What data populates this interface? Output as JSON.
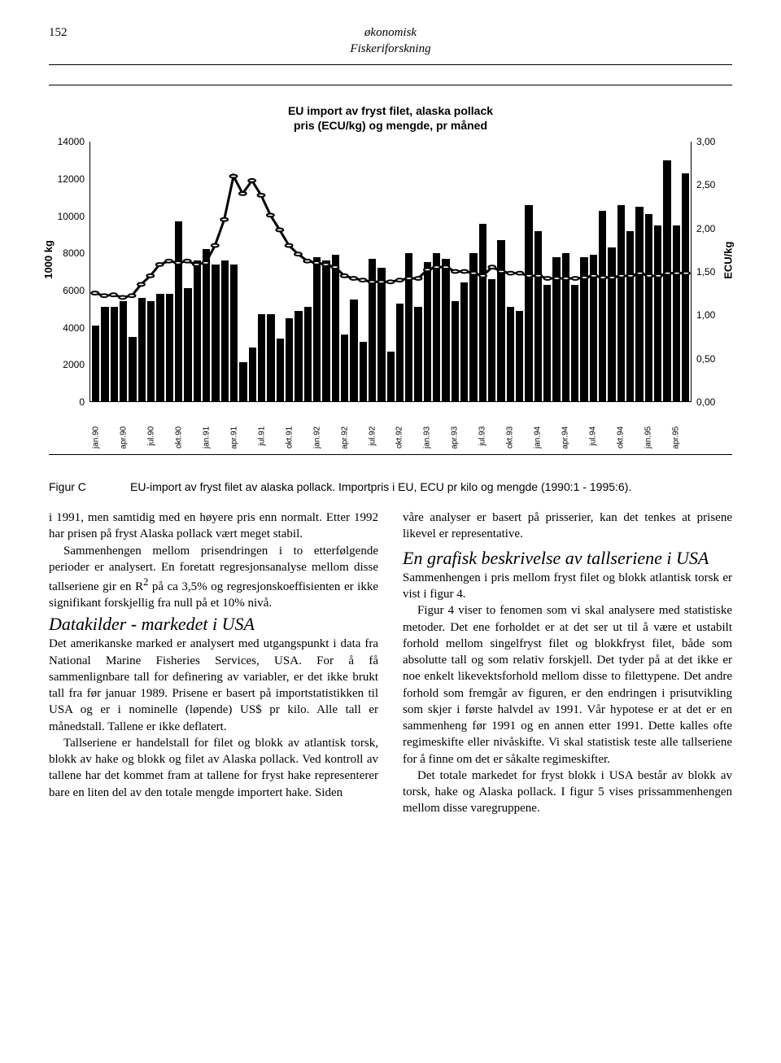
{
  "header": {
    "page_number": "152",
    "journal_line1": "økonomisk",
    "journal_line2": "Fiskeriforskning"
  },
  "chart": {
    "type": "bar+line",
    "title_line1": "EU import av fryst filet, alaska pollack",
    "title_line2": "pris (ECU/kg) og mengde, pr måned",
    "left_axis": {
      "label": "1000 kg",
      "min": 0,
      "max": 14000,
      "step": 2000,
      "ticks": [
        "0",
        "2000",
        "4000",
        "6000",
        "8000",
        "10000",
        "12000",
        "14000"
      ]
    },
    "right_axis": {
      "label": "ECU/kg",
      "min": 0,
      "max": 3.0,
      "step": 0.5,
      "ticks": [
        "0,00",
        "0,50",
        "1,00",
        "1,50",
        "2,00",
        "2,50",
        "3,00"
      ]
    },
    "x_labels": [
      "jan.90",
      "apr.90",
      "jul.90",
      "okt.90",
      "jan.91",
      "apr.91",
      "jul.91",
      "okt.91",
      "jan.92",
      "apr.92",
      "jul.92",
      "okt.92",
      "jan.93",
      "apr.93",
      "jul.93",
      "okt.93",
      "jan.94",
      "apr.94",
      "jul.94",
      "okt.94",
      "jan.95",
      "apr.95"
    ],
    "bar_values": [
      4100,
      5100,
      5100,
      5400,
      3500,
      5600,
      5400,
      5800,
      5800,
      9700,
      6100,
      7600,
      8200,
      7400,
      7600,
      7400,
      2100,
      2900,
      4700,
      4700,
      3400,
      4500,
      4900,
      5100,
      7800,
      7600,
      7900,
      3600,
      5500,
      3200,
      7700,
      7200,
      2700,
      5300,
      8000,
      5100,
      7500,
      8000,
      7700,
      5400,
      6400,
      8000,
      9600,
      6600,
      8700,
      5100,
      4900,
      10600,
      9200,
      6300,
      7800,
      8000,
      6300,
      7800,
      7900,
      10300,
      8300,
      10600,
      9200,
      10500,
      10100,
      9500,
      13000,
      9500,
      12300
    ],
    "price_values": [
      1.25,
      1.22,
      1.23,
      1.2,
      1.22,
      1.35,
      1.45,
      1.58,
      1.62,
      1.6,
      1.62,
      1.58,
      1.6,
      1.8,
      2.1,
      2.6,
      2.4,
      2.55,
      2.38,
      2.15,
      1.98,
      1.8,
      1.7,
      1.62,
      1.6,
      1.58,
      1.55,
      1.45,
      1.42,
      1.4,
      1.38,
      1.38,
      1.38,
      1.4,
      1.42,
      1.42,
      1.52,
      1.55,
      1.55,
      1.5,
      1.5,
      1.48,
      1.45,
      1.55,
      1.5,
      1.48,
      1.48,
      1.45,
      1.45,
      1.42,
      1.42,
      1.42,
      1.42,
      1.43,
      1.45,
      1.43,
      1.43,
      1.45,
      1.45,
      1.48,
      1.45,
      1.45,
      1.48,
      1.48,
      1.48
    ],
    "bar_color": "#000000",
    "line_stroke": "#000000",
    "marker_fill": "#ffffff",
    "background_color": "#ffffff"
  },
  "caption": {
    "label": "Figur C",
    "text": "EU-import av fryst filet av alaska pollack. Importpris i EU, ECU pr kilo og mengde (1990:1 - 1995:6)."
  },
  "text": {
    "left": {
      "p1": "i 1991, men samtidig med en høyere pris enn normalt. Etter 1992 har prisen på fryst Alaska pollack vært meget stabil.",
      "p2_a": "Sammenhengen mellom prisendringen i to etterfølgende perioder er analysert. En foretatt regresjonsanalyse mellom disse tallseriene gir en R",
      "p2_sup": "2",
      "p2_b": " på ca 3,5% og regresjonskoeffisienten er ikke signifikant forskjellig fra null på et 10% nivå.",
      "h1": "Datakilder -  markedet i USA",
      "p3": "Det amerikanske marked er analysert med utgangspunkt i data fra National Marine Fisheries Services, USA. For å få sammenlignbare tall for definering av variabler, er det ikke brukt tall fra før januar 1989. Prisene er basert på importstatistikken til USA og er i nominelle (løpende) US$ pr kilo. Alle tall er månedstall. Tallene er ikke deflatert.",
      "p4": "Tallseriene er handelstall for filet og blokk av atlantisk torsk, blokk av hake og blokk og filet av Alaska pollack. Ved kontroll av tallene har det kommet fram at tallene for fryst hake representerer bare en liten del av den totale mengde importert hake. Siden"
    },
    "right": {
      "p1": "våre analyser er basert på prisserier, kan det tenkes at prisene likevel er representative.",
      "h1": "En grafisk beskrivelse av tallseriene i USA",
      "p2": "Sammenhengen i pris mellom fryst filet og blokk atlantisk torsk er vist i figur 4.",
      "p3": "Figur 4 viser to fenomen som vi skal analysere med statistiske metoder. Det ene forholdet er at det ser ut til å være et ustabilt forhold mellom singelfryst filet og blokkfryst filet, både som absolutte tall og som relativ forskjell. Det tyder på at det ikke er noe enkelt likevektsforhold mellom disse to filettypene. Det andre forhold som fremgår av figuren, er den endringen i prisutvikling som skjer i første halvdel av 1991. Vår hypotese er at det er en sammenheng før 1991 og en annen etter 1991. Dette kalles ofte regimeskifte eller nivåskifte. Vi skal statistisk teste alle tallseriene for å finne om det er såkalte regimeskifter.",
      "p4": "Det totale markedet for fryst blokk i USA består av blokk av torsk, hake og Alaska pollack. I figur 5 vises prissammenhengen mellom disse varegruppene."
    }
  }
}
